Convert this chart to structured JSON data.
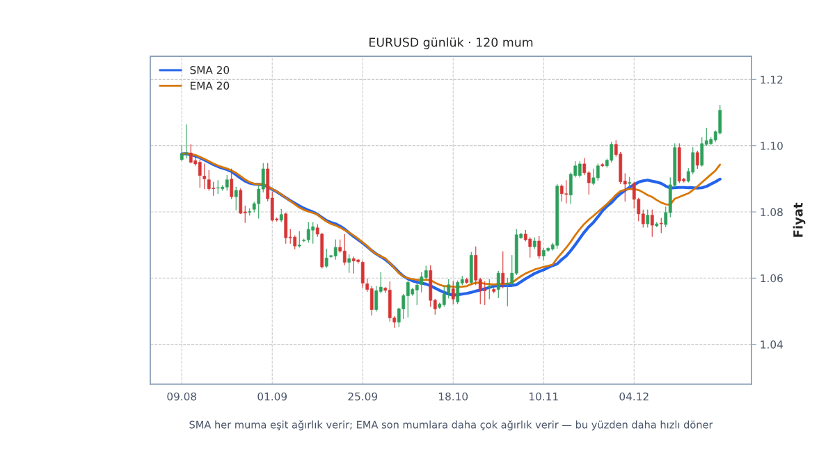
{
  "chart_data": {
    "type": "candlestick",
    "title": "EURUSD günlük · 120 mum",
    "ylabel": "Fiyat",
    "annotations": [
      "SMA her muma eşit ağırlık verir; EMA son mumlara daha çok ağırlık verir — bu yüzden daha hızlı döner"
    ],
    "categories": [
      "09.08",
      null,
      null,
      null,
      null,
      null,
      null,
      null,
      null,
      null,
      null,
      null,
      null,
      null,
      null,
      null,
      null,
      null,
      null,
      null,
      "01.09",
      null,
      null,
      null,
      null,
      null,
      null,
      null,
      null,
      null,
      null,
      null,
      null,
      null,
      null,
      null,
      null,
      null,
      null,
      null,
      "25.09",
      null,
      null,
      null,
      null,
      null,
      null,
      null,
      null,
      null,
      null,
      null,
      null,
      null,
      null,
      null,
      null,
      null,
      null,
      null,
      "18.10",
      null,
      null,
      null,
      null,
      null,
      null,
      null,
      null,
      null,
      null,
      null,
      null,
      null,
      null,
      null,
      null,
      null,
      null,
      null,
      "10.11",
      null,
      null,
      null,
      null,
      null,
      null,
      null,
      null,
      null,
      null,
      null,
      null,
      null,
      null,
      null,
      null,
      null,
      null,
      null,
      "04.12",
      null,
      null,
      null,
      null,
      null,
      null,
      null,
      null,
      null,
      null,
      null,
      null,
      null,
      null,
      null,
      null,
      null,
      null,
      null
    ],
    "ohlc": [
      [
        1.0958,
        1.1,
        1.0955,
        1.0975
      ],
      [
        1.0975,
        1.1063,
        1.0962,
        1.0978
      ],
      [
        1.0978,
        1.1004,
        1.0948,
        1.095
      ],
      [
        1.0955,
        1.0965,
        1.094,
        1.0945
      ],
      [
        1.095,
        1.0958,
        1.0874,
        1.091
      ],
      [
        1.0908,
        1.0945,
        1.087,
        1.09
      ],
      [
        1.0897,
        1.0925,
        1.0865,
        1.087
      ],
      [
        1.0872,
        1.089,
        1.085,
        1.087
      ],
      [
        1.0872,
        1.0895,
        1.0855,
        1.0873
      ],
      [
        1.087,
        1.088,
        1.0865,
        1.0875
      ],
      [
        1.0875,
        1.091,
        1.0865,
        1.0897
      ],
      [
        1.0899,
        1.093,
        1.084,
        1.0846
      ],
      [
        1.0846,
        1.0875,
        1.0806,
        1.0865
      ],
      [
        1.0865,
        1.087,
        1.0795,
        1.0796
      ],
      [
        1.08,
        1.0818,
        1.0768,
        1.0797
      ],
      [
        1.0799,
        1.081,
        1.079,
        1.0801
      ],
      [
        1.0808,
        1.083,
        1.08,
        1.0825
      ],
      [
        1.0825,
        1.088,
        1.0781,
        1.0869
      ],
      [
        1.0869,
        1.0947,
        1.086,
        1.093
      ],
      [
        1.093,
        1.0947,
        1.0833,
        1.084
      ],
      [
        1.0842,
        1.086,
        1.0772,
        1.0775
      ],
      [
        1.0779,
        1.0782,
        1.0772,
        1.0776
      ],
      [
        1.0775,
        1.0808,
        1.077,
        1.0792
      ],
      [
        1.0794,
        1.0797,
        1.0705,
        1.0722
      ],
      [
        1.0724,
        1.0747,
        1.0705,
        1.0722
      ],
      [
        1.0724,
        1.0728,
        1.0688,
        1.0697
      ],
      [
        1.0697,
        1.0741,
        1.0693,
        1.07
      ],
      [
        1.0713,
        1.0718,
        1.071,
        1.0715
      ],
      [
        1.0716,
        1.0768,
        1.0708,
        1.0747
      ],
      [
        1.0745,
        1.0768,
        1.0705,
        1.0755
      ],
      [
        1.0752,
        1.0762,
        1.0726,
        1.0733
      ],
      [
        1.0733,
        1.0736,
        1.063,
        1.0634
      ],
      [
        1.0636,
        1.0688,
        1.0632,
        1.0661
      ],
      [
        1.0665,
        1.0669,
        1.0662,
        1.0668
      ],
      [
        1.0667,
        1.0716,
        1.0657,
        1.0693
      ],
      [
        1.0693,
        1.0716,
        1.0678,
        1.0682
      ],
      [
        1.0682,
        1.0732,
        1.064,
        1.0648
      ],
      [
        1.0648,
        1.0671,
        1.0617,
        1.0659
      ],
      [
        1.0659,
        1.0664,
        1.0615,
        1.0652
      ],
      [
        1.0655,
        1.0657,
        1.0645,
        1.065
      ],
      [
        1.0648,
        1.0652,
        1.0572,
        1.0585
      ],
      [
        1.0583,
        1.0598,
        1.056,
        1.0566
      ],
      [
        1.0568,
        1.0575,
        1.0488,
        1.0505
      ],
      [
        1.0505,
        1.0575,
        1.05,
        1.0562
      ],
      [
        1.056,
        1.0617,
        1.0555,
        1.0573
      ],
      [
        1.057,
        1.0572,
        1.0556,
        1.0563
      ],
      [
        1.0564,
        1.0589,
        1.047,
        1.048
      ],
      [
        1.048,
        1.0484,
        1.0451,
        1.0467
      ],
      [
        1.0467,
        1.051,
        1.0453,
        1.0507
      ],
      [
        1.0507,
        1.0552,
        1.0478,
        1.0547
      ],
      [
        1.0547,
        1.0592,
        1.0482,
        1.0587
      ],
      [
        1.0552,
        1.057,
        1.0548,
        1.0566
      ],
      [
        1.0564,
        1.0584,
        1.052,
        1.0579
      ],
      [
        1.0581,
        1.0617,
        1.0558,
        1.0604
      ],
      [
        1.0602,
        1.0636,
        1.0598,
        1.0623
      ],
      [
        1.0623,
        1.0638,
        1.0514,
        1.0533
      ],
      [
        1.0533,
        1.0537,
        1.0491,
        1.0507
      ],
      [
        1.0512,
        1.0525,
        1.0508,
        1.0522
      ],
      [
        1.052,
        1.0575,
        1.0515,
        1.0552
      ],
      [
        1.0555,
        1.0596,
        1.054,
        1.058
      ],
      [
        1.0568,
        1.059,
        1.0522,
        1.0537
      ],
      [
        1.0528,
        1.0592,
        1.0522,
        1.0587
      ],
      [
        1.0585,
        1.0606,
        1.058,
        1.0596
      ],
      [
        1.0596,
        1.06,
        1.0584,
        1.0587
      ],
      [
        1.0587,
        1.0678,
        1.058,
        1.0669
      ],
      [
        1.0669,
        1.0695,
        1.058,
        1.0594
      ],
      [
        1.0596,
        1.06,
        1.0522,
        1.0562
      ],
      [
        1.0566,
        1.059,
        1.052,
        1.0562
      ],
      [
        1.0573,
        1.0596,
        1.0537,
        1.0576
      ],
      [
        1.0566,
        1.057,
        1.0555,
        1.056
      ],
      [
        1.0566,
        1.0621,
        1.0541,
        1.0615
      ],
      [
        1.0615,
        1.068,
        1.057,
        1.0583
      ],
      [
        1.0582,
        1.06,
        1.0516,
        1.0585
      ],
      [
        1.0583,
        1.0669,
        1.0578,
        1.0615
      ],
      [
        1.0615,
        1.0747,
        1.061,
        1.0731
      ],
      [
        1.0722,
        1.0736,
        1.072,
        1.0733
      ],
      [
        1.0733,
        1.0745,
        1.0712,
        1.0716
      ],
      [
        1.0718,
        1.0722,
        1.0663,
        1.0695
      ],
      [
        1.0695,
        1.0722,
        1.069,
        1.0712
      ],
      [
        1.0712,
        1.0726,
        1.0659,
        1.0667
      ],
      [
        1.0667,
        1.069,
        1.0655,
        1.0684
      ],
      [
        1.0684,
        1.0693,
        1.068,
        1.069
      ],
      [
        1.0688,
        1.0705,
        1.0684,
        1.0701
      ],
      [
        1.0699,
        1.0884,
        1.069,
        1.0878
      ],
      [
        1.0878,
        1.0882,
        1.0832,
        1.0855
      ],
      [
        1.0855,
        1.0895,
        1.0827,
        1.0853
      ],
      [
        1.0851,
        1.0918,
        1.0825,
        1.0914
      ],
      [
        1.091,
        1.0952,
        1.0905,
        1.0939
      ],
      [
        1.091,
        1.0952,
        1.0905,
        1.0945
      ],
      [
        1.0945,
        1.0962,
        1.0912,
        1.0918
      ],
      [
        1.0918,
        1.0922,
        1.0853,
        1.0888
      ],
      [
        1.0886,
        1.093,
        1.0882,
        1.0903
      ],
      [
        1.0903,
        1.0945,
        1.0895,
        1.0939
      ],
      [
        1.0943,
        1.0946,
        1.0937,
        1.0939
      ],
      [
        1.0939,
        1.096,
        1.0935,
        1.0956
      ],
      [
        1.0956,
        1.1011,
        1.095,
        1.1004
      ],
      [
        1.1004,
        1.1015,
        1.0968,
        1.0973
      ],
      [
        1.0975,
        1.098,
        1.0885,
        1.0891
      ],
      [
        1.0893,
        1.0916,
        1.0832,
        1.0884
      ],
      [
        1.0886,
        1.0905,
        1.087,
        1.0889
      ],
      [
        1.0886,
        1.089,
        1.0811,
        1.0838
      ],
      [
        1.0838,
        1.0842,
        1.0773,
        1.0794
      ],
      [
        1.0794,
        1.0806,
        1.0754,
        1.0764
      ],
      [
        1.0764,
        1.0806,
        1.0754,
        1.079
      ],
      [
        1.079,
        1.0806,
        1.0726,
        1.076
      ],
      [
        1.0758,
        1.0768,
        1.0755,
        1.0764
      ],
      [
        1.0766,
        1.0781,
        1.0737,
        1.0764
      ],
      [
        1.0762,
        1.0815,
        1.0755,
        1.0798
      ],
      [
        1.0798,
        1.0903,
        1.0785,
        1.0882
      ],
      [
        1.088,
        1.1006,
        1.0875,
        1.0994
      ],
      [
        1.0994,
        1.1006,
        1.0888,
        1.0893
      ],
      [
        1.0899,
        1.0902,
        1.089,
        1.0893
      ],
      [
        1.0893,
        1.0931,
        1.089,
        1.0922
      ],
      [
        1.092,
        1.0994,
        1.0915,
        1.0979
      ],
      [
        1.0979,
        1.0984,
        1.0931,
        1.0941
      ],
      [
        1.0941,
        1.1025,
        1.0938,
        1.1006
      ],
      [
        1.1004,
        1.1053,
        1.1,
        1.1015
      ],
      [
        1.1006,
        1.1025,
        1.1003,
        1.1019
      ],
      [
        1.1017,
        1.1045,
        1.1012,
        1.1042
      ],
      [
        1.1038,
        1.1122,
        1.1035,
        1.1107
      ]
    ],
    "colors": [
      "#2ca05a",
      "#2ca05a",
      "#d63434",
      "#d63434",
      "#d63434",
      "#d63434",
      "#d63434",
      "#d63434",
      "#2ca05a",
      "#2ca05a",
      "#2ca05a",
      "#d63434",
      "#2ca05a",
      "#d63434",
      "#d63434",
      "#2ca05a",
      "#2ca05a",
      "#2ca05a",
      "#2ca05a",
      "#d63434",
      "#d63434",
      "#d63434",
      "#2ca05a",
      "#d63434",
      "#d63434",
      "#d63434",
      "#2ca05a",
      "#2ca05a",
      "#2ca05a",
      "#2ca05a",
      "#d63434",
      "#d63434",
      "#2ca05a",
      "#2ca05a",
      "#2ca05a",
      "#d63434",
      "#d63434",
      "#2ca05a",
      "#d63434",
      "#d63434",
      "#d63434",
      "#d63434",
      "#d63434",
      "#2ca05a",
      "#2ca05a",
      "#d63434",
      "#d63434",
      "#d63434",
      "#2ca05a",
      "#2ca05a",
      "#2ca05a",
      "#2ca05a",
      "#2ca05a",
      "#2ca05a",
      "#2ca05a",
      "#d63434",
      "#d63434",
      "#2ca05a",
      "#2ca05a",
      "#2ca05a",
      "#d63434",
      "#2ca05a",
      "#2ca05a",
      "#d63434",
      "#2ca05a",
      "#d63434",
      "#d63434",
      "#d63434",
      "#2ca05a",
      "#d63434",
      "#2ca05a",
      "#d63434",
      "#2ca05a",
      "#2ca05a",
      "#2ca05a",
      "#2ca05a",
      "#d63434",
      "#d63434",
      "#2ca05a",
      "#d63434",
      "#2ca05a",
      "#2ca05a",
      "#2ca05a",
      "#2ca05a",
      "#d63434",
      "#d63434",
      "#2ca05a",
      "#2ca05a",
      "#2ca05a",
      "#d63434",
      "#d63434",
      "#2ca05a",
      "#2ca05a",
      "#d63434",
      "#2ca05a",
      "#2ca05a",
      "#d63434",
      "#d63434",
      "#d63434",
      "#2ca05a",
      "#d63434",
      "#d63434",
      "#d63434",
      "#2ca05a",
      "#d63434",
      "#2ca05a",
      "#d63434",
      "#2ca05a",
      "#2ca05a",
      "#2ca05a",
      "#d63434",
      "#d63434",
      "#2ca05a",
      "#2ca05a",
      "#d63434",
      "#2ca05a",
      "#2ca05a",
      "#2ca05a",
      "#2ca05a",
      "#2ca05a"
    ],
    "series": [
      {
        "name": "SMA 20",
        "type": "line",
        "color": "#2563eb",
        "values": [
          1.0975,
          1.0976,
          1.0973,
          1.0969,
          1.0964,
          1.0957,
          1.095,
          1.0943,
          1.0937,
          1.0932,
          1.0928,
          1.0922,
          1.0912,
          1.0902,
          1.0893,
          1.0887,
          1.0884,
          1.0883,
          1.0882,
          1.0876,
          1.0868,
          1.0861,
          1.0852,
          1.0843,
          1.0834,
          1.0826,
          1.0818,
          1.0811,
          1.0805,
          1.08,
          1.0793,
          1.0783,
          1.0774,
          1.0768,
          1.0764,
          1.0757,
          1.0748,
          1.0737,
          1.0726,
          1.0716,
          1.0706,
          1.0695,
          1.0683,
          1.0673,
          1.0665,
          1.0656,
          1.0645,
          1.0632,
          1.0618,
          1.0606,
          1.0598,
          1.0592,
          1.0588,
          1.0585,
          1.0582,
          1.0577,
          1.057,
          1.0563,
          1.0557,
          1.0552,
          1.0549,
          1.055,
          1.0552,
          1.0554,
          1.0557,
          1.0561,
          1.0564,
          1.0568,
          1.0572,
          1.0576,
          1.0577,
          1.0577,
          1.0578,
          1.0578,
          1.058,
          1.0589,
          1.0598,
          1.0606,
          1.0614,
          1.062,
          1.0625,
          1.0632,
          1.0638,
          1.0643,
          1.0656,
          1.0667,
          1.0683,
          1.0701,
          1.072,
          1.0739,
          1.0755,
          1.0768,
          1.0785,
          1.0803,
          1.0817,
          1.0828,
          1.0843,
          1.0855,
          1.0865,
          1.0874,
          1.0882,
          1.089,
          1.0894,
          1.0896,
          1.0893,
          1.089,
          1.0886,
          1.0878,
          1.0872,
          1.0873,
          1.0874,
          1.0874,
          1.0873,
          1.0873,
          1.0872,
          1.0873,
          1.0877,
          1.0884,
          1.0891,
          1.0899
        ]
      },
      {
        "name": "EMA 20",
        "type": "line",
        "color": "#d97706",
        "values": [
          1.0975,
          1.0977,
          1.0975,
          1.0972,
          1.0966,
          1.096,
          1.0953,
          1.0946,
          1.094,
          1.0935,
          1.0931,
          1.0925,
          1.0918,
          1.0908,
          1.0898,
          1.089,
          1.0885,
          1.0883,
          1.0884,
          1.0878,
          1.0869,
          1.0862,
          1.0853,
          1.0843,
          1.0833,
          1.0823,
          1.0813,
          1.0806,
          1.0801,
          1.0797,
          1.0792,
          1.0781,
          1.0771,
          1.0764,
          1.0759,
          1.0753,
          1.0745,
          1.0738,
          1.0729,
          1.0719,
          1.0708,
          1.0697,
          1.0683,
          1.0673,
          1.0666,
          1.066,
          1.0646,
          1.0631,
          1.0615,
          1.0605,
          1.06,
          1.0597,
          1.0595,
          1.0594,
          1.0595,
          1.0594,
          1.0586,
          1.058,
          1.0576,
          1.0575,
          1.0574,
          1.0573,
          1.0574,
          1.0576,
          1.0582,
          1.0586,
          1.0586,
          1.0583,
          1.0582,
          1.0581,
          1.0582,
          1.0583,
          1.0583,
          1.0586,
          1.0596,
          1.0606,
          1.0614,
          1.062,
          1.0626,
          1.063,
          1.0634,
          1.0637,
          1.0641,
          1.066,
          1.0676,
          1.0692,
          1.071,
          1.073,
          1.0748,
          1.0764,
          1.0777,
          1.0788,
          1.08,
          1.0812,
          1.0824,
          1.0837,
          1.0852,
          1.0863,
          1.0867,
          1.0869,
          1.0869,
          1.0866,
          1.0859,
          1.0851,
          1.0845,
          1.0836,
          1.0828,
          1.0823,
          1.0822,
          1.084,
          1.0845,
          1.0851,
          1.0856,
          1.0866,
          1.0877,
          1.0889,
          1.0901,
          1.0913,
          1.0925,
          1.0943
        ]
      }
    ],
    "ylim": [
      1.028,
      1.127
    ],
    "yticks": [
      {
        "value": 1.04,
        "label": "1.04"
      },
      {
        "value": 1.06,
        "label": "1.06"
      },
      {
        "value": 1.08,
        "label": "1.08"
      },
      {
        "value": 1.1,
        "label": "1.10"
      },
      {
        "value": 1.12,
        "label": "1.12"
      }
    ],
    "grid": true,
    "legend": "top left"
  }
}
